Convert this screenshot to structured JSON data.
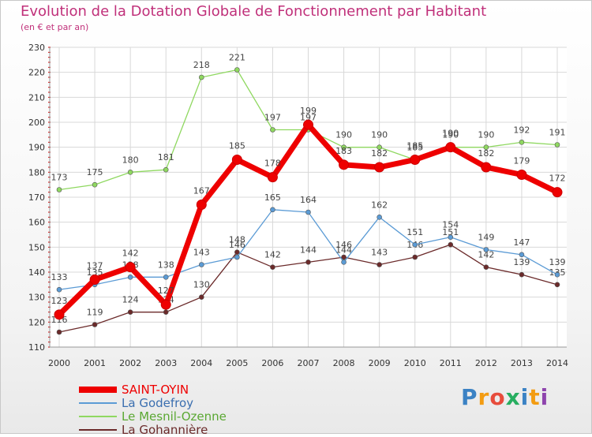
{
  "chart_data": {
    "type": "line",
    "title": "Evolution de la Dotation Globale de Fonctionnement par Habitant",
    "subtitle": "(en € et par an)",
    "x": [
      2000,
      2001,
      2002,
      2003,
      2004,
      2005,
      2006,
      2007,
      2008,
      2009,
      2010,
      2011,
      2012,
      2013,
      2014
    ],
    "ylim": [
      110,
      230
    ],
    "yticks": [
      110,
      120,
      130,
      140,
      150,
      160,
      170,
      180,
      190,
      200,
      210,
      220,
      230
    ],
    "grid": true,
    "legend": "bottom-left",
    "series": [
      {
        "name": "SAINT-OYIN",
        "color": "#ee0000",
        "values": [
          123,
          137,
          142,
          127,
          167,
          185,
          178,
          199,
          183,
          182,
          185,
          190,
          182,
          179,
          172
        ]
      },
      {
        "name": "La Godefroy",
        "color": "#5b9bd5",
        "values": [
          133,
          135,
          138,
          138,
          143,
          146,
          165,
          164,
          144,
          162,
          151,
          154,
          149,
          147,
          139
        ]
      },
      {
        "name": "Le Mesnil-Ozenne",
        "color": "#8fd860",
        "values": [
          173,
          175,
          180,
          181,
          218,
          221,
          197,
          197,
          190,
          190,
          185,
          190,
          190,
          192,
          191
        ]
      },
      {
        "name": "La Gohannière",
        "color": "#6b2a2a",
        "values": [
          116,
          119,
          124,
          124,
          130,
          148,
          142,
          144,
          146,
          143,
          146,
          151,
          142,
          139,
          135
        ]
      }
    ]
  },
  "logo": {
    "text": "Proxiti",
    "colors": [
      "#3b82c4",
      "#f39c12",
      "#e74c3c",
      "#27ae60",
      "#3b82c4",
      "#f39c12",
      "#8e44ad"
    ]
  }
}
